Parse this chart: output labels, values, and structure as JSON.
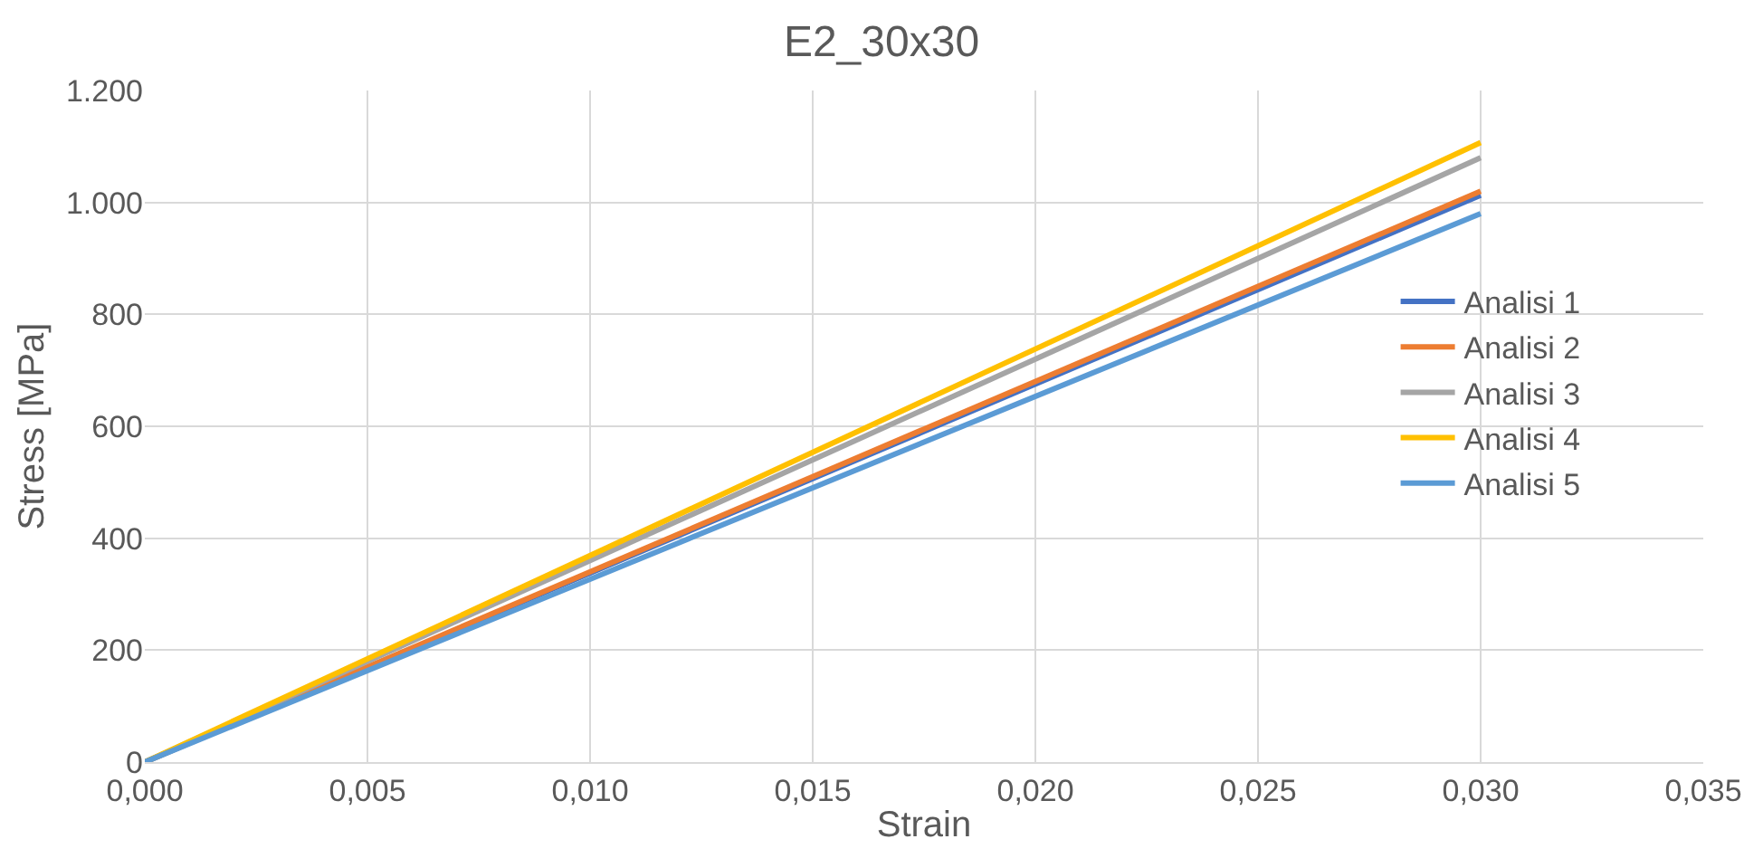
{
  "chart_data": {
    "type": "line",
    "title": "E2_30x30",
    "xlabel": "Strain",
    "ylabel": "Stress [MPa]",
    "x": [
      0,
      0.03
    ],
    "series": [
      {
        "name": "Analisi 1",
        "color": "#4472c4",
        "values": [
          0,
          1013
        ]
      },
      {
        "name": "Analisi 2",
        "color": "#ed7d31",
        "values": [
          0,
          1020
        ]
      },
      {
        "name": "Analisi 3",
        "color": "#a5a5a5",
        "values": [
          0,
          1080
        ]
      },
      {
        "name": "Analisi 4",
        "color": "#ffc000",
        "values": [
          0,
          1107
        ]
      },
      {
        "name": "Analisi 5",
        "color": "#5b9bd5",
        "values": [
          0,
          980
        ]
      }
    ],
    "xlim": [
      0,
      0.035
    ],
    "xticks": [
      {
        "value": 0,
        "label": "0,000"
      },
      {
        "value": 0.005,
        "label": "0,005"
      },
      {
        "value": 0.01,
        "label": "0,010"
      },
      {
        "value": 0.015,
        "label": "0,015"
      },
      {
        "value": 0.02,
        "label": "0,020"
      },
      {
        "value": 0.025,
        "label": "0,025"
      },
      {
        "value": 0.03,
        "label": "0,030"
      },
      {
        "value": 0.035,
        "label": "0,035"
      }
    ],
    "ylim": [
      0,
      1200
    ],
    "yticks": [
      0,
      200,
      400,
      600,
      800,
      {
        "value": 1000,
        "label": "1.000"
      },
      {
        "value": 1200,
        "label": "1.200"
      }
    ],
    "grid": true,
    "legend": "right",
    "marker": "none",
    "line_style": "solid"
  }
}
